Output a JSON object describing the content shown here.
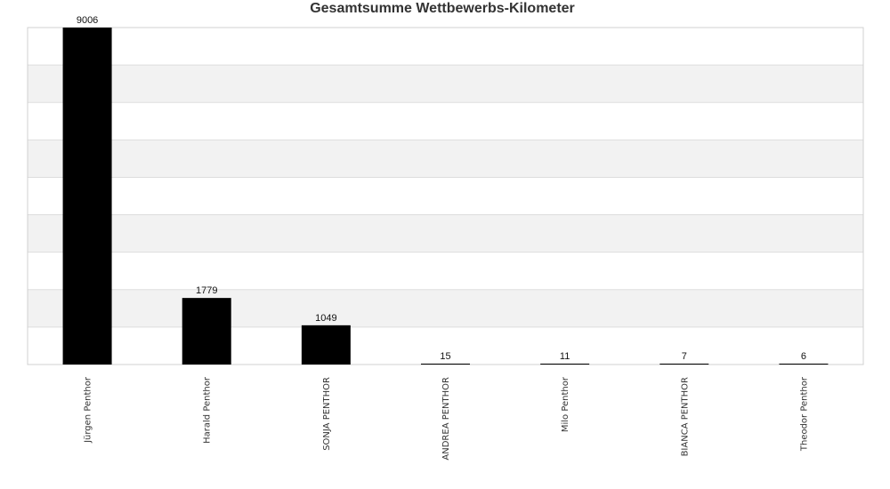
{
  "chart_data": {
    "type": "bar",
    "title": "Gesamtsumme Wettbewerbs-Kilometer",
    "xlabel": "",
    "ylabel": "",
    "categories": [
      "Jürgen Penthor",
      "Harald Penthor",
      "SONJA PENTHOR",
      "ANDREA PENTHOR",
      "Milo Penthor",
      "BIANCA PENTHOR",
      "Theodor Penthor"
    ],
    "values": [
      9006,
      1779,
      1049,
      15,
      11,
      7,
      6
    ],
    "ylim": [
      0,
      9006
    ],
    "y_axis_labels_shown": false,
    "grid": true,
    "bar_color": "#000000",
    "band_color": "#f2f2f2"
  }
}
